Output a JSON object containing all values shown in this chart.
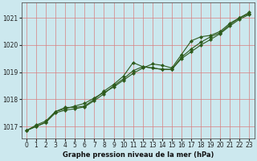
{
  "title": "Graphe pression niveau de la mer (hPa)",
  "bg_color": "#cce8ee",
  "plot_bg_color": "#cce8ee",
  "grid_color": "#d88080",
  "line_color": "#2d5a1b",
  "marker_color": "#2d5a1b",
  "x_ticks": [
    0,
    1,
    2,
    3,
    4,
    5,
    6,
    7,
    8,
    9,
    10,
    11,
    12,
    13,
    14,
    15,
    16,
    17,
    18,
    19,
    20,
    21,
    22,
    23
  ],
  "y_ticks": [
    1017,
    1018,
    1019,
    1020,
    1021
  ],
  "ylim": [
    1016.55,
    1021.55
  ],
  "xlim": [
    -0.5,
    23.5
  ],
  "series1": [
    1016.85,
    1017.0,
    1017.15,
    1017.55,
    1017.7,
    1017.7,
    1017.75,
    1018.0,
    1018.3,
    1018.55,
    1018.85,
    1019.35,
    1019.2,
    1019.15,
    1019.1,
    1019.1,
    1019.55,
    1019.85,
    1020.1,
    1020.3,
    1020.45,
    1020.75,
    1021.0,
    1021.15
  ],
  "series2": [
    1016.85,
    1017.05,
    1017.2,
    1017.55,
    1017.65,
    1017.75,
    1017.85,
    1018.05,
    1018.25,
    1018.45,
    1018.7,
    1018.95,
    1019.15,
    1019.3,
    1019.25,
    1019.15,
    1019.65,
    1020.15,
    1020.3,
    1020.35,
    1020.5,
    1020.8,
    1021.0,
    1021.2
  ],
  "series3": [
    1016.85,
    1017.0,
    1017.15,
    1017.5,
    1017.6,
    1017.65,
    1017.72,
    1017.95,
    1018.2,
    1018.5,
    1018.75,
    1019.05,
    1019.2,
    1019.15,
    1019.1,
    1019.1,
    1019.5,
    1019.75,
    1020.0,
    1020.2,
    1020.42,
    1020.7,
    1020.95,
    1021.12
  ],
  "tick_fontsize": 5.5,
  "label_fontsize": 6.0,
  "title_color": "#111111",
  "spine_color": "#555555",
  "linewidth": 0.8,
  "markersize": 2.2
}
